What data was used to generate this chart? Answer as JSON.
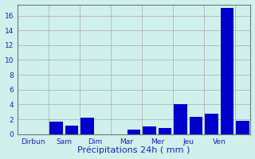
{
  "tick_labels": [
    "Dirbun",
    "Sam",
    "Dim",
    "Mar",
    "Mer",
    "Jeu",
    "Ven"
  ],
  "values": [
    0,
    0,
    1.7,
    1.1,
    2.2,
    0,
    0,
    0.6,
    1.0,
    0.8,
    4.0,
    2.3,
    2.8,
    17.0,
    1.8
  ],
  "bar_positions": [
    0,
    1,
    2,
    3,
    4,
    5,
    6,
    7,
    8,
    9,
    10,
    11,
    12,
    13,
    14
  ],
  "tick_positions": [
    0.5,
    2.5,
    4.5,
    6.5,
    8.5,
    10.5,
    12.5
  ],
  "vline_positions": [
    1.5,
    3.5,
    5.5,
    7.5,
    9.5,
    11.5
  ],
  "bar_color": "#0000cc",
  "background_color": "#d0f0ec",
  "grid_color": "#aaaaaa",
  "ylabel_values": [
    0,
    2,
    4,
    6,
    8,
    10,
    12,
    14,
    16
  ],
  "ylim": [
    0,
    17.5
  ],
  "xlim": [
    -0.5,
    14.5
  ],
  "xlabel": "Précipitations 24h ( mm )",
  "xlabel_fontsize": 8,
  "tick_fontsize": 6.5,
  "label_color": "#2222bb"
}
